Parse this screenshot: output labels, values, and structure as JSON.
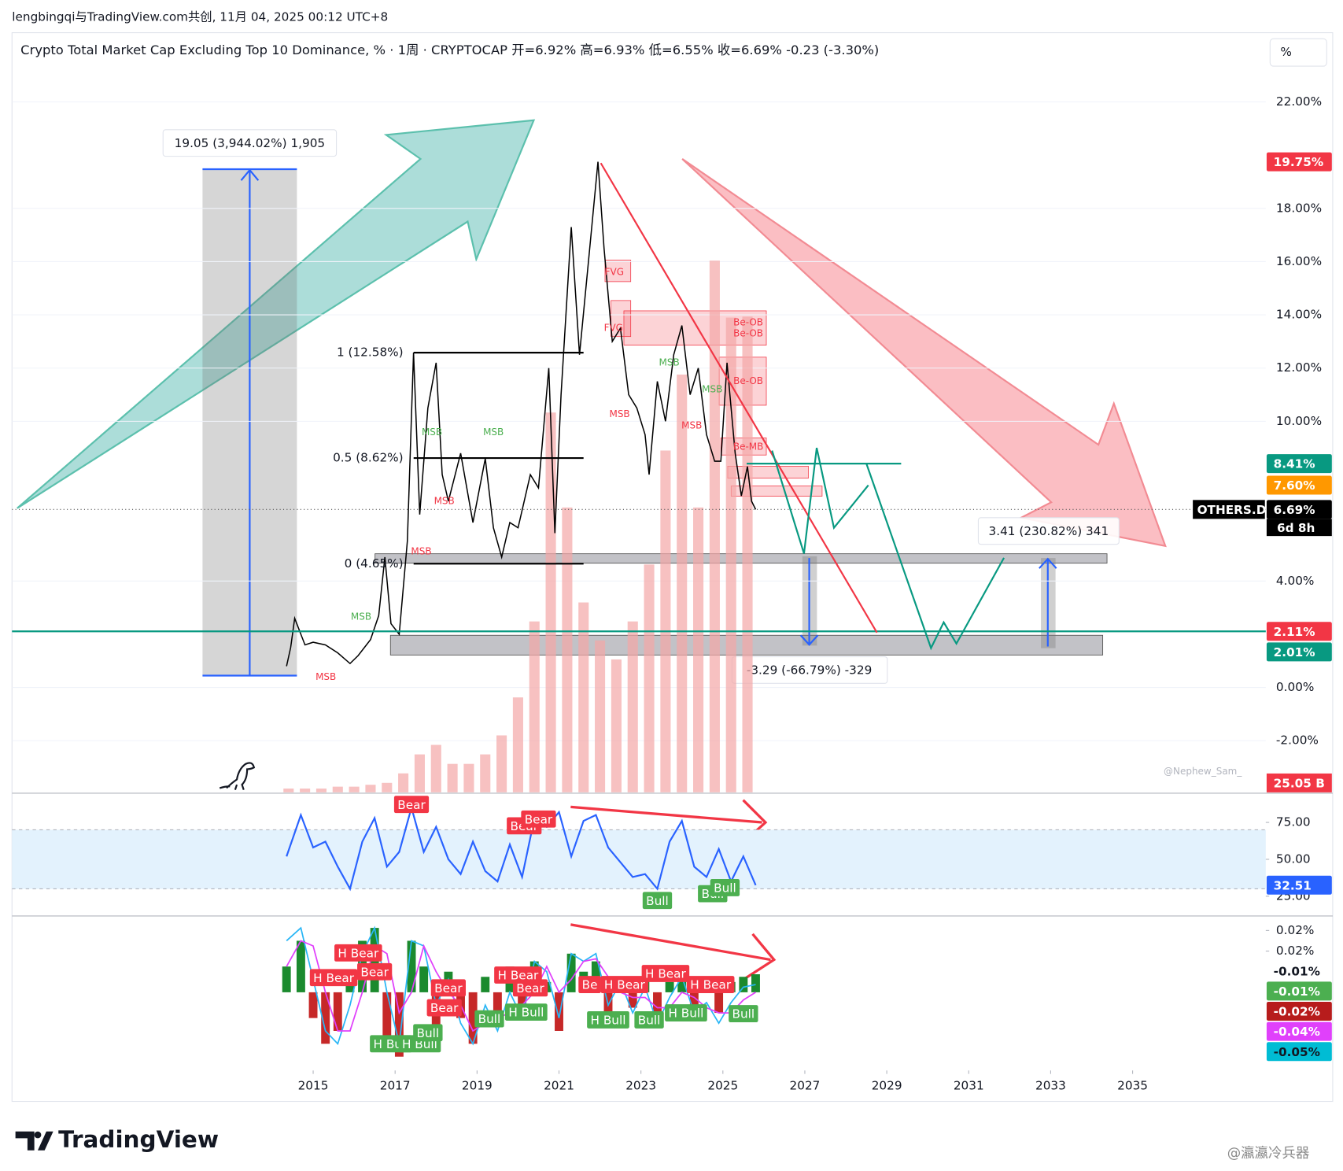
{
  "header": {
    "credit": "lengbingqi与TradingView.com共创, 11月 04, 2025 00:12 UTC+8",
    "scale_button": "%"
  },
  "chart_data": [
    {
      "type": "line",
      "title": "Crypto Total Market Cap Excluding Top 10 Dominance, % · 1周 · CRYPTOCAP  开=6.92%  高=6.93%  低=6.55%  收=6.69%  -0.23 (-3.30%)",
      "x": [
        2014.35,
        2014.45,
        2014.55,
        2014.8,
        2015.0,
        2015.3,
        2015.6,
        2015.9,
        2016.1,
        2016.4,
        2016.6,
        2016.75,
        2016.9,
        2017.1,
        2017.3,
        2017.45,
        2017.6,
        2017.8,
        2018.0,
        2018.15,
        2018.3,
        2018.6,
        2018.9,
        2019.2,
        2019.4,
        2019.6,
        2019.8,
        2020.0,
        2020.3,
        2020.5,
        2020.75,
        2020.9,
        2021.05,
        2021.3,
        2021.5,
        2021.75,
        2021.95,
        2022.1,
        2022.3,
        2022.5,
        2022.7,
        2022.9,
        2023.1,
        2023.2,
        2023.4,
        2023.6,
        2023.8,
        2024.0,
        2024.2,
        2024.4,
        2024.6,
        2024.8,
        2024.95,
        2025.1,
        2025.3,
        2025.45,
        2025.6,
        2025.7,
        2025.8
      ],
      "values": [
        0.8,
        1.5,
        2.6,
        1.6,
        1.7,
        1.6,
        1.3,
        0.9,
        1.2,
        1.8,
        2.7,
        4.9,
        2.4,
        2.0,
        5.5,
        12.58,
        6.5,
        10.5,
        12.2,
        8.0,
        7.0,
        8.8,
        6.2,
        8.6,
        6.0,
        4.9,
        6.2,
        6.0,
        8.0,
        7.5,
        12.0,
        5.8,
        11.0,
        17.3,
        12.5,
        16.5,
        19.75,
        16.5,
        13.0,
        13.5,
        11.0,
        10.5,
        9.5,
        8.0,
        11.5,
        10.0,
        12.5,
        13.6,
        11.0,
        12.0,
        9.5,
        8.5,
        8.5,
        12.2,
        8.8,
        7.2,
        8.3,
        7.0,
        6.69
      ],
      "color": "#000000",
      "xlim": [
        2007.65,
        2038.25
      ],
      "xticks": [
        2015,
        2017,
        2019,
        2021,
        2023,
        2025,
        2027,
        2029,
        2031,
        2033,
        2035
      ],
      "ylim": [
        -3.94,
        24.6
      ],
      "yticks": [
        {
          "value": 22,
          "label": "22.00%"
        },
        {
          "value": 18,
          "label": "18.00%"
        },
        {
          "value": 16,
          "label": "16.00%"
        },
        {
          "value": 14,
          "label": "14.00%"
        },
        {
          "value": 12,
          "label": "12.00%"
        },
        {
          "value": 10,
          "label": "10.00%"
        },
        {
          "value": 4,
          "label": "4.00%"
        },
        {
          "value": 0,
          "label": "0.00%"
        },
        {
          "value": -2,
          "label": "-2.00%"
        }
      ],
      "grid": true,
      "volume": {
        "x": [
          2014.4,
          2014.8,
          2015.2,
          2015.6,
          2016.0,
          2016.4,
          2016.8,
          2017.2,
          2017.6,
          2018.0,
          2018.4,
          2018.8,
          2019.2,
          2019.6,
          2020.0,
          2020.4,
          2020.8,
          2021.2,
          2021.6,
          2022.0,
          2022.4,
          2022.8,
          2023.2,
          2023.6,
          2024.0,
          2024.4,
          2024.8,
          2025.2,
          2025.6
        ],
        "values": [
          0.2,
          0.2,
          0.2,
          0.3,
          0.3,
          0.4,
          0.5,
          1,
          2,
          2.5,
          1.5,
          1.5,
          2,
          3,
          5,
          9,
          20,
          15,
          10,
          8,
          7,
          9,
          12,
          18,
          22,
          15,
          28,
          25,
          25.05
        ],
        "ylim": [
          0,
          40
        ],
        "color": "#f4a6a6"
      },
      "fib_levels": [
        {
          "value": 12.58,
          "label": "1 (12.58%)"
        },
        {
          "value": 8.62,
          "label": "0.5 (8.62%)"
        },
        {
          "value": 4.65,
          "label": "0 (4.65%)"
        }
      ],
      "hlines": [
        {
          "value": 2.11,
          "color": "#089981"
        }
      ],
      "projections": [
        {
          "x": [
            2022.02,
            2028.76
          ],
          "values": [
            19.7,
            2.06
          ],
          "color": "#f23645"
        },
        {
          "x": [
            2026.2,
            2026.98,
            2027.29,
            2027.71,
            2028.55
          ],
          "values": [
            8.9,
            5.03,
            9.0,
            6.0,
            7.6
          ],
          "color": "#089981"
        },
        {
          "x": [
            2025.58,
            2029.35
          ],
          "values": [
            8.41,
            8.41
          ],
          "color": "#089981"
        },
        {
          "x": [
            2028.5,
            2030.08,
            2030.39,
            2030.7,
            2031.86
          ],
          "values": [
            8.42,
            1.48,
            2.45,
            1.65,
            4.87
          ],
          "color": "#089981"
        }
      ],
      "measures": [
        "19.05 (3,944.02%) 1,905",
        "3.41 (230.82%) 341",
        "-3.29 (-66.79%) -329"
      ],
      "annotations": [
        {
          "label": "MSB",
          "x": 2015.31,
          "y": 0.39,
          "color": "#f23645"
        },
        {
          "label": "MSB",
          "x": 2016.17,
          "y": 2.65,
          "color": "#4caf50"
        },
        {
          "label": "MSB",
          "x": 2017.9,
          "y": 9.58,
          "color": "#4caf50"
        },
        {
          "label": "MSB",
          "x": 2018.2,
          "y": 7.0,
          "color": "#f23645"
        },
        {
          "label": "MSB",
          "x": 2017.64,
          "y": 5.1,
          "color": "#f23645"
        },
        {
          "label": "MSB",
          "x": 2019.4,
          "y": 9.58,
          "color": "#4caf50"
        },
        {
          "label": "FVG",
          "x": 2022.35,
          "y": 15.6,
          "color": "#f23645"
        },
        {
          "label": "FVG",
          "x": 2022.33,
          "y": 13.5,
          "color": "#f23645"
        },
        {
          "label": "MSB",
          "x": 2022.48,
          "y": 10.26,
          "color": "#f23645"
        },
        {
          "label": "MSB",
          "x": 2023.69,
          "y": 12.2,
          "color": "#4caf50"
        },
        {
          "label": "MSB",
          "x": 2024.24,
          "y": 9.84,
          "color": "#f23645"
        },
        {
          "label": "MSB",
          "x": 2024.74,
          "y": 11.2,
          "color": "#4caf50"
        },
        {
          "label": "Be-OB",
          "x": 2025.62,
          "y": 13.7,
          "color": "#f23645"
        },
        {
          "label": "Be-OB",
          "x": 2025.62,
          "y": 13.3,
          "color": "#f23645"
        },
        {
          "label": "Be-OB",
          "x": 2025.62,
          "y": 11.5,
          "color": "#f23645"
        },
        {
          "label": "Be-MB",
          "x": 2025.62,
          "y": 9.03,
          "color": "#f23645"
        }
      ],
      "price_labels": [
        {
          "value": 19.75,
          "label": "19.75%",
          "color": "#f23645"
        },
        {
          "value": 8.41,
          "label": "8.41%",
          "color": "#089981"
        },
        {
          "value": 7.6,
          "label": "7.60%",
          "color": "#ff9800"
        },
        {
          "value": 6.69,
          "label": "6.69%",
          "color": "#000000"
        },
        {
          "value": 2.11,
          "label": "2.11%",
          "color": "#f23645"
        },
        {
          "value": 2.01,
          "label": "2.01%",
          "color": "#089981"
        }
      ],
      "symbol_label": "OTHERS.D",
      "countdown": "6d 8h",
      "volume_label": "25.05 B",
      "watermark": "@Nephew_Sam_"
    },
    {
      "type": "line",
      "x": [
        2014.35,
        2014.7,
        2015.0,
        2015.3,
        2015.6,
        2015.9,
        2016.2,
        2016.5,
        2016.8,
        2017.1,
        2017.4,
        2017.7,
        2018.0,
        2018.3,
        2018.6,
        2018.9,
        2019.2,
        2019.5,
        2019.8,
        2020.1,
        2020.4,
        2020.7,
        2021.0,
        2021.3,
        2021.6,
        2021.9,
        2022.2,
        2022.5,
        2022.8,
        2023.1,
        2023.4,
        2023.7,
        2024.0,
        2024.3,
        2024.6,
        2024.9,
        2025.2,
        2025.5,
        2025.8
      ],
      "values": [
        52,
        80,
        58,
        62,
        45,
        30,
        62,
        78,
        45,
        55,
        85,
        55,
        72,
        50,
        40,
        62,
        42,
        35,
        60,
        38,
        78,
        72,
        82,
        52,
        76,
        80,
        58,
        48,
        38,
        40,
        30,
        62,
        76,
        45,
        38,
        57,
        35,
        52,
        32.51
      ],
      "color": "#2962ff",
      "xlim": [
        2007.65,
        2038.25
      ],
      "ylim": [
        12.2,
        94.2
      ],
      "yticks": [
        {
          "value": 75,
          "label": "75.00"
        },
        {
          "value": 50,
          "label": "50.00"
        },
        {
          "value": 25,
          "label": "25.00"
        }
      ],
      "band": [
        30,
        70
      ],
      "band_color": "#e3f2fd",
      "signals": [
        {
          "label": "Bear",
          "x": 2017.4,
          "y": 87.2,
          "color": "#f23645"
        },
        {
          "label": "Bear",
          "x": 2020.15,
          "y": 72.7,
          "color": "#f23645"
        },
        {
          "label": "Bear",
          "x": 2020.5,
          "y": 77.3,
          "color": "#f23645"
        },
        {
          "label": "Bull",
          "x": 2023.4,
          "y": 22.1,
          "color": "#4caf50"
        },
        {
          "label": "Bull",
          "x": 2024.75,
          "y": 26.7,
          "color": "#4caf50"
        },
        {
          "label": "Bull",
          "x": 2025.05,
          "y": 30.8,
          "color": "#4caf50"
        }
      ],
      "price_labels": [
        {
          "value": 32.51,
          "label": "32.51",
          "color": "#2962ff"
        }
      ]
    },
    {
      "type": "macd",
      "x": [
        2014.35,
        2014.7,
        2015.0,
        2015.3,
        2015.6,
        2015.9,
        2016.2,
        2016.5,
        2016.8,
        2017.1,
        2017.4,
        2017.7,
        2018.0,
        2018.3,
        2018.6,
        2018.9,
        2019.2,
        2019.5,
        2019.8,
        2020.1,
        2020.4,
        2020.7,
        2021.0,
        2021.3,
        2021.6,
        2021.9,
        2022.2,
        2022.5,
        2022.8,
        2023.1,
        2023.4,
        2023.7,
        2024.0,
        2024.3,
        2024.6,
        2024.9,
        2025.2,
        2025.5,
        2025.8
      ],
      "histogram": [
        0.01,
        0.02,
        -0.01,
        -0.02,
        -0.015,
        0.005,
        0.02,
        0.025,
        -0.02,
        -0.025,
        0.02,
        0.01,
        -0.015,
        0.008,
        -0.01,
        -0.02,
        0.006,
        -0.012,
        0.01,
        -0.008,
        0.012,
        0.004,
        -0.015,
        0.015,
        0.008,
        0.012,
        -0.01,
        0.005,
        -0.006,
        0.006,
        -0.01,
        0.004,
        0.008,
        -0.006,
        0.002,
        -0.008,
        0.004,
        0.006,
        0.007
      ],
      "macd": [
        0.02,
        0.025,
        0.005,
        -0.015,
        -0.02,
        -0.005,
        0.015,
        0.025,
        0.0,
        -0.02,
        0.02,
        0.018,
        -0.005,
        0.005,
        -0.012,
        -0.02,
        -0.005,
        -0.015,
        0.0,
        -0.01,
        0.012,
        0.008,
        -0.01,
        0.015,
        0.012,
        0.015,
        -0.005,
        0.004,
        -0.008,
        0.002,
        -0.012,
        -0.002,
        0.006,
        -0.008,
        -0.004,
        -0.012,
        -0.004,
        0.002,
        0.003
      ],
      "signal": [
        0.01,
        0.02,
        0.018,
        0.0,
        -0.015,
        -0.015,
        0.0,
        0.018,
        0.015,
        -0.008,
        0.0,
        0.018,
        0.008,
        0.0,
        -0.005,
        -0.015,
        -0.012,
        -0.01,
        -0.008,
        -0.005,
        0.0,
        0.01,
        0.0,
        0.005,
        0.012,
        0.013,
        0.006,
        0.0,
        -0.002,
        -0.002,
        -0.006,
        -0.006,
        0.0,
        -0.002,
        -0.006,
        -0.008,
        -0.008,
        -0.003,
        0.0
      ],
      "colors": {
        "up": "#1b8a2e",
        "down": "#c62828",
        "macd": "#29b6f6",
        "signal": "#e040fb"
      },
      "xlim": [
        2007.65,
        2038.25
      ],
      "ylim": [
        -0.0297,
        0.0293
      ],
      "yticks": [
        {
          "value": 0.024,
          "label": "0.02%"
        },
        {
          "value": 0.016,
          "label": "0.02%"
        }
      ],
      "signals": [
        {
          "label": "H Bear",
          "x": 2015.5,
          "y": 0.0057,
          "color": "#f23645"
        },
        {
          "label": "H Bear",
          "x": 2016.1,
          "y": 0.0153,
          "color": "#f23645"
        },
        {
          "label": "Bear",
          "x": 2016.5,
          "y": 0.008,
          "color": "#f23645"
        },
        {
          "label": "Bear",
          "x": 2018.3,
          "y": 0.0017,
          "color": "#f23645"
        },
        {
          "label": "Bear",
          "x": 2018.2,
          "y": -0.006,
          "color": "#f23645"
        },
        {
          "label": "H Bull",
          "x": 2016.9,
          "y": -0.02,
          "color": "#4caf50"
        },
        {
          "label": "H Bull",
          "x": 2017.6,
          "y": -0.02,
          "color": "#4caf50"
        },
        {
          "label": "Bull",
          "x": 2017.8,
          "y": -0.0157,
          "color": "#4caf50"
        },
        {
          "label": "Bull",
          "x": 2019.3,
          "y": -0.0103,
          "color": "#4caf50"
        },
        {
          "label": "H Bear",
          "x": 2020.0,
          "y": 0.0067,
          "color": "#f23645"
        },
        {
          "label": "Bear",
          "x": 2020.3,
          "y": 0.0017,
          "color": "#f23645"
        },
        {
          "label": "H Bull",
          "x": 2020.2,
          "y": -0.0077,
          "color": "#4caf50"
        },
        {
          "label": "Be",
          "x": 2021.75,
          "y": 0.003,
          "color": "#f23645"
        },
        {
          "label": "H Bear",
          "x": 2022.6,
          "y": 0.003,
          "color": "#f23645"
        },
        {
          "label": "H Bear",
          "x": 2023.6,
          "y": 0.0073,
          "color": "#f23645"
        },
        {
          "label": "H Bear",
          "x": 2024.7,
          "y": 0.003,
          "color": "#f23645"
        },
        {
          "label": "H Bull",
          "x": 2022.2,
          "y": -0.0107,
          "color": "#4caf50"
        },
        {
          "label": "Bull",
          "x": 2023.2,
          "y": -0.0107,
          "color": "#4caf50"
        },
        {
          "label": "H Bull",
          "x": 2024.1,
          "y": -0.008,
          "color": "#4caf50"
        },
        {
          "label": "Bull",
          "x": 2025.5,
          "y": -0.0083,
          "color": "#4caf50"
        }
      ],
      "price_labels": [
        {
          "label": "-0.01%",
          "color": "#ffffff",
          "text_color": "#131722"
        },
        {
          "label": "-0.01%",
          "color": "#4caf50",
          "text_color": "#ffffff"
        },
        {
          "label": "-0.02%",
          "color": "#b71c1c",
          "text_color": "#ffffff"
        },
        {
          "label": "-0.04%",
          "color": "#e040fb",
          "text_color": "#ffffff"
        },
        {
          "label": "-0.05%",
          "color": "#00bcd4",
          "text_color": "#131722"
        }
      ]
    }
  ],
  "footer": {
    "brand": "TradingView",
    "author": "@瀛瀛冷兵器"
  }
}
